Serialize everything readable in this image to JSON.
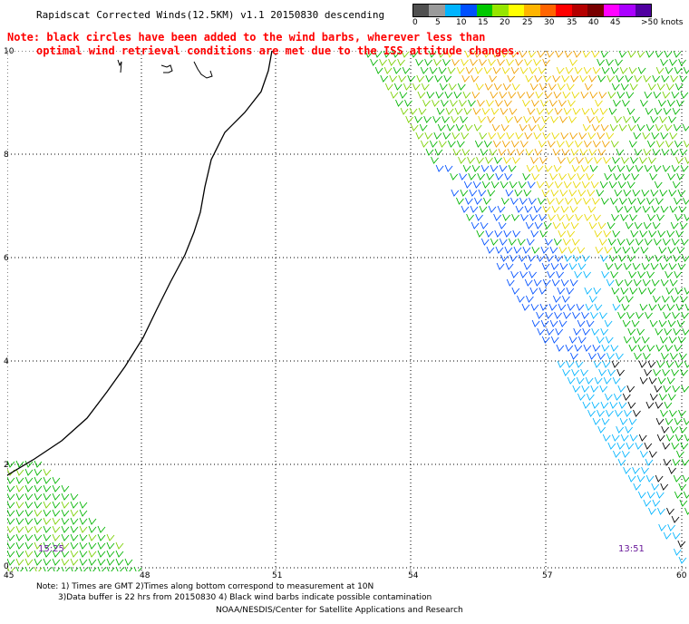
{
  "header": {
    "title": "Rapidscat Corrected Winds(12.5KM) v1.1 20150830 descending"
  },
  "note": {
    "line1": "Note: black circles have been added to the wind barbs, wherever less than",
    "line2": "optimal wind retrieval conditions are met due to the ISS attitude changes."
  },
  "legend": {
    "labels": [
      "0",
      "5",
      "10",
      "15",
      "20",
      "25",
      "30",
      "35",
      "40",
      "45",
      ">50 knots"
    ],
    "colors": [
      "#505050",
      "#9a9a9a",
      "#00b4ff",
      "#0050ff",
      "#00c800",
      "#96e600",
      "#ffff00",
      "#ffb400",
      "#ff6400",
      "#ff0000",
      "#b40000",
      "#780000",
      "#ff00ff",
      "#aa00ff",
      "#5000a0"
    ]
  },
  "axes": {
    "lon_labels": [
      "45",
      "48",
      "51",
      "54",
      "57",
      "60"
    ],
    "lat_labels": [
      "10",
      "8",
      "6",
      "4",
      "2",
      "0"
    ]
  },
  "passes": [
    {
      "time": "15:25"
    },
    {
      "time": "13:51"
    }
  ],
  "footer": {
    "line1": "Note: 1) Times are GMT 2)Times along bottom correspond to measurement at 10N",
    "line2": "3)Data buffer is 22 hrs from 20150830 4) Black wind barbs indicate possible contamination",
    "line3": "NOAA/NESDIS/Center for Satellite Applications and Research"
  }
}
